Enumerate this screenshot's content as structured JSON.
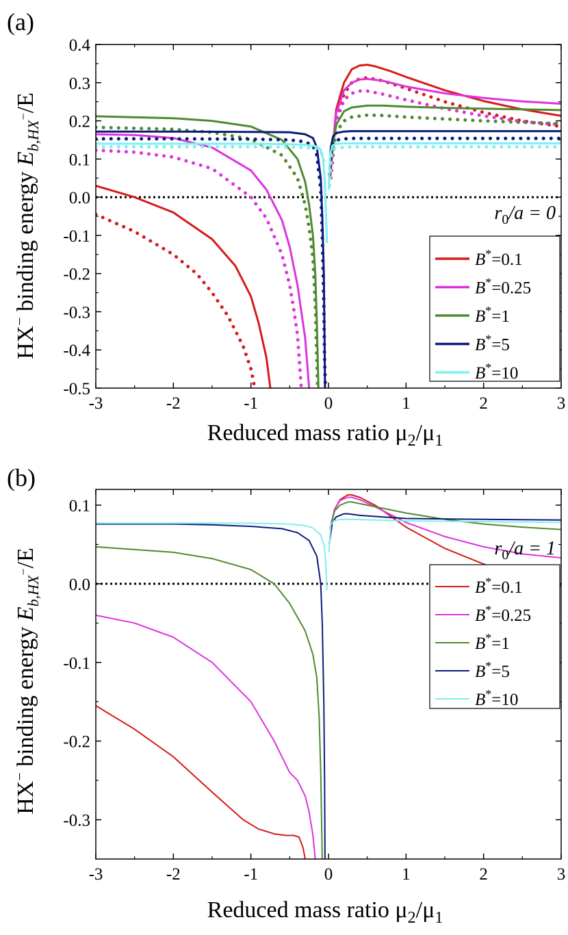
{
  "figure": {
    "panel_a_label": "(a)",
    "panel_b_label": "(b)",
    "ylabel_prefix": "HX",
    "ylabel_sup": "−",
    "ylabel_mid": " binding energy ",
    "ylabel_E": "E",
    "ylabel_sub": "b,HX",
    "ylabel_sub_sup": "−",
    "ylabel_suffix": "/E",
    "xlabel_main": "Reduced mass ratio μ",
    "xlabel_sub1": "2",
    "xlabel_slash": "/μ",
    "xlabel_sub2": "1"
  },
  "colors": {
    "B01": "#d71a1a",
    "B025": "#dd33dd",
    "B1": "#4f8a2f",
    "B5": "#0d1a7c",
    "B10": "#7fefef"
  },
  "chart_data": [
    {
      "type": "line",
      "panel": "a",
      "annotation": "r0/a = 0",
      "annotation_r": "r",
      "annotation_sub": "0",
      "annotation_rest": "/a = 0",
      "xlim": [
        -3,
        3
      ],
      "ylim": [
        -0.5,
        0.4
      ],
      "xticks": [
        "-3",
        "-2",
        "-1",
        "0",
        "1",
        "2",
        "3"
      ],
      "yticks": [
        "-0.5",
        "-0.4",
        "-0.3",
        "-0.2",
        "-0.1",
        "0.0",
        "0.1",
        "0.2",
        "0.3",
        "0.4"
      ],
      "reference_line": {
        "y": 0,
        "style": "dotted",
        "color": "#000000"
      },
      "legend": [
        "B*=0.1",
        "B*=0.25",
        "B*=1",
        "B*=5",
        "B*=10"
      ],
      "series": [
        {
          "name": "B*=0.1",
          "style": "solid",
          "color_key": "B01",
          "x": [
            -3,
            -2.5,
            -2,
            -1.5,
            -1.2,
            -1,
            -0.9,
            -0.8,
            -0.75
          ],
          "y": [
            0.03,
            0.0,
            -0.04,
            -0.11,
            -0.18,
            -0.26,
            -0.33,
            -0.42,
            -0.5
          ]
        },
        {
          "name": "B*=0.1",
          "style": "solid",
          "color_key": "B01",
          "x": [
            0.02,
            0.1,
            0.2,
            0.3,
            0.4,
            0.5,
            0.6,
            0.8,
            1.0,
            1.5,
            2,
            2.5,
            3
          ],
          "y": [
            0.05,
            0.23,
            0.3,
            0.335,
            0.345,
            0.347,
            0.343,
            0.33,
            0.315,
            0.28,
            0.252,
            0.23,
            0.213
          ]
        },
        {
          "name": "B*=0.1 (dotted)",
          "style": "dotted",
          "color_key": "B01",
          "x": [
            -3,
            -2.5,
            -2,
            -1.7,
            -1.5,
            -1.3,
            -1.1,
            -1.0,
            -0.95
          ],
          "y": [
            -0.045,
            -0.09,
            -0.15,
            -0.2,
            -0.25,
            -0.31,
            -0.39,
            -0.45,
            -0.5
          ]
        },
        {
          "name": "B*=0.1 (dotted)",
          "style": "dotted",
          "color_key": "B01",
          "x": [
            0.03,
            0.1,
            0.2,
            0.3,
            0.4,
            0.5,
            0.7,
            1.0,
            1.5,
            2,
            2.5,
            3
          ],
          "y": [
            0.05,
            0.2,
            0.27,
            0.3,
            0.31,
            0.313,
            0.305,
            0.285,
            0.25,
            0.222,
            0.2,
            0.185
          ]
        },
        {
          "name": "B*=0.25",
          "style": "solid",
          "color_key": "B025",
          "x": [
            -3,
            -2.5,
            -2,
            -1.5,
            -1,
            -0.8,
            -0.6,
            -0.5,
            -0.4,
            -0.3,
            -0.25
          ],
          "y": [
            0.165,
            0.163,
            0.155,
            0.13,
            0.07,
            0.02,
            -0.06,
            -0.13,
            -0.23,
            -0.37,
            -0.5
          ]
        },
        {
          "name": "B*=0.25",
          "style": "solid",
          "color_key": "B025",
          "x": [
            0.02,
            0.1,
            0.2,
            0.3,
            0.4,
            0.5,
            0.7,
            1.0,
            1.5,
            2,
            2.5,
            3
          ],
          "y": [
            0.06,
            0.22,
            0.28,
            0.3,
            0.308,
            0.31,
            0.305,
            0.29,
            0.272,
            0.26,
            0.251,
            0.245
          ]
        },
        {
          "name": "B*=0.25 (dotted)",
          "style": "dotted",
          "color_key": "B025",
          "x": [
            -3,
            -2.5,
            -2,
            -1.5,
            -1,
            -0.8,
            -0.6,
            -0.5,
            -0.45,
            -0.4,
            -0.35
          ],
          "y": [
            0.123,
            0.118,
            0.105,
            0.075,
            0.0,
            -0.055,
            -0.15,
            -0.23,
            -0.29,
            -0.36,
            -0.5
          ]
        },
        {
          "name": "B*=0.25 (dotted)",
          "style": "dotted",
          "color_key": "B025",
          "x": [
            0.03,
            0.1,
            0.2,
            0.3,
            0.4,
            0.5,
            0.7,
            1.0,
            1.5,
            2,
            2.5,
            3
          ],
          "y": [
            0.07,
            0.2,
            0.255,
            0.272,
            0.278,
            0.278,
            0.27,
            0.255,
            0.232,
            0.213,
            0.198,
            0.19
          ]
        },
        {
          "name": "B*=1",
          "style": "solid",
          "color_key": "B1",
          "x": [
            -3,
            -2,
            -1.5,
            -1,
            -0.6,
            -0.4,
            -0.3,
            -0.25,
            -0.2,
            -0.17,
            -0.15,
            -0.13
          ],
          "y": [
            0.212,
            0.207,
            0.2,
            0.185,
            0.15,
            0.1,
            0.04,
            -0.02,
            -0.1,
            -0.2,
            -0.33,
            -0.5
          ]
        },
        {
          "name": "B*=1",
          "style": "solid",
          "color_key": "B1",
          "x": [
            0.03,
            0.1,
            0.2,
            0.3,
            0.5,
            0.7,
            1.0,
            1.5,
            2,
            2.5,
            3
          ],
          "y": [
            0.1,
            0.19,
            0.225,
            0.235,
            0.24,
            0.24,
            0.237,
            0.234,
            0.232,
            0.23,
            0.228
          ]
        },
        {
          "name": "B*=1 (dotted)",
          "style": "dotted",
          "color_key": "B1",
          "x": [
            -3,
            -2,
            -1.5,
            -1,
            -0.6,
            -0.4,
            -0.3,
            -0.25,
            -0.2,
            -0.17,
            -0.14
          ],
          "y": [
            0.183,
            0.178,
            0.17,
            0.152,
            0.11,
            0.05,
            -0.02,
            -0.08,
            -0.16,
            -0.28,
            -0.5
          ]
        },
        {
          "name": "B*=1 (dotted)",
          "style": "dotted",
          "color_key": "B1",
          "x": [
            0.03,
            0.1,
            0.2,
            0.3,
            0.5,
            0.7,
            1.0,
            1.5,
            2,
            2.5,
            3
          ],
          "y": [
            0.09,
            0.17,
            0.2,
            0.21,
            0.215,
            0.214,
            0.21,
            0.205,
            0.2,
            0.196,
            0.193
          ]
        },
        {
          "name": "B*=5",
          "style": "solid",
          "color_key": "B5",
          "x": [
            -3,
            -2,
            -1,
            -0.5,
            -0.3,
            -0.2,
            -0.15,
            -0.1,
            -0.08,
            -0.06,
            -0.05,
            -0.045
          ],
          "y": [
            0.172,
            0.172,
            0.171,
            0.17,
            0.165,
            0.155,
            0.13,
            0.05,
            -0.05,
            -0.2,
            -0.38,
            -0.5
          ]
        },
        {
          "name": "B*=5",
          "style": "solid",
          "color_key": "B5",
          "x": [
            0.01,
            0.03,
            0.06,
            0.1,
            0.2,
            0.3,
            0.5,
            1,
            2,
            3
          ],
          "y": [
            0.05,
            0.13,
            0.16,
            0.168,
            0.172,
            0.173,
            0.173,
            0.173,
            0.173,
            0.173
          ]
        },
        {
          "name": "B*=5 (dotted)",
          "style": "dotted",
          "color_key": "B5",
          "x": [
            -3,
            -2,
            -1,
            -0.5,
            -0.3,
            -0.2,
            -0.15,
            -0.1,
            -0.08,
            -0.06,
            -0.05,
            -0.04
          ],
          "y": [
            0.153,
            0.153,
            0.152,
            0.15,
            0.145,
            0.135,
            0.11,
            0.02,
            -0.1,
            -0.28,
            -0.42,
            -0.5
          ]
        },
        {
          "name": "B*=5 (dotted)",
          "style": "dotted",
          "color_key": "B5",
          "x": [
            0.015,
            0.04,
            0.08,
            0.15,
            0.3,
            0.5,
            1,
            2,
            3
          ],
          "y": [
            0.06,
            0.13,
            0.147,
            0.152,
            0.154,
            0.154,
            0.154,
            0.154,
            0.154
          ]
        },
        {
          "name": "B*=10",
          "style": "solid",
          "color_key": "B10",
          "x": [
            -3,
            -2,
            -1,
            -0.5,
            -0.3,
            -0.15,
            -0.1,
            -0.07,
            -0.05,
            -0.03,
            -0.02
          ],
          "y": [
            0.14,
            0.14,
            0.14,
            0.139,
            0.137,
            0.133,
            0.125,
            0.1,
            0.05,
            -0.05,
            -0.12
          ]
        },
        {
          "name": "B*=10",
          "style": "solid",
          "color_key": "B10",
          "x": [
            0.005,
            0.02,
            0.05,
            0.1,
            0.2,
            0.5,
            1,
            2,
            3
          ],
          "y": [
            0.02,
            0.11,
            0.135,
            0.14,
            0.141,
            0.141,
            0.141,
            0.141,
            0.141
          ]
        },
        {
          "name": "B*=10 (dotted)",
          "style": "dotted",
          "color_key": "B10",
          "x": [
            -3,
            -2,
            -1,
            -0.5,
            -0.3,
            -0.15,
            -0.1,
            -0.07,
            -0.05
          ],
          "y": [
            0.132,
            0.132,
            0.132,
            0.131,
            0.13,
            0.127,
            0.12,
            0.105,
            0.08
          ]
        },
        {
          "name": "B*=10 (dotted)",
          "style": "dotted",
          "color_key": "B10",
          "x": [
            0.015,
            0.04,
            0.08,
            0.15,
            0.3,
            0.5,
            1,
            2,
            3
          ],
          "y": [
            0.03,
            0.115,
            0.127,
            0.13,
            0.132,
            0.132,
            0.132,
            0.132,
            0.132
          ]
        }
      ]
    },
    {
      "type": "line",
      "panel": "b",
      "annotation": "r0/a = 1",
      "annotation_r": "r",
      "annotation_sub": "0",
      "annotation_rest": "/a = 1",
      "xlim": [
        -3,
        3
      ],
      "ylim": [
        -0.35,
        0.12
      ],
      "xticks": [
        "-3",
        "-2",
        "-1",
        "0",
        "1",
        "2",
        "3"
      ],
      "yticks": [
        "-0.3",
        "-0.2",
        "-0.1",
        "0.0",
        "0.1"
      ],
      "ytick_values": [
        -0.3,
        -0.2,
        -0.1,
        0.0,
        0.1
      ],
      "reference_line": {
        "y": 0,
        "style": "dotted",
        "color": "#000000"
      },
      "legend": [
        "B*=0.1",
        "B*=0.25",
        "B*=1",
        "B*=5",
        "B*=10"
      ],
      "series": [
        {
          "name": "B*=0.1",
          "style": "solid",
          "color_key": "B01",
          "x": [
            -3,
            -2.5,
            -2,
            -1.5,
            -1.1,
            -0.9,
            -0.7,
            -0.55,
            -0.45,
            -0.38,
            -0.33,
            -0.3
          ],
          "y": [
            -0.155,
            -0.185,
            -0.22,
            -0.265,
            -0.3,
            -0.312,
            -0.318,
            -0.32,
            -0.32,
            -0.322,
            -0.335,
            -0.35
          ]
        },
        {
          "name": "B*=0.1",
          "style": "solid",
          "color_key": "B01",
          "x": [
            0.02,
            0.08,
            0.15,
            0.25,
            0.3,
            0.4,
            0.6,
            0.8,
            1.0,
            1.5,
            2,
            2.5,
            3
          ],
          "y": [
            0.07,
            0.095,
            0.107,
            0.113,
            0.113,
            0.11,
            0.1,
            0.086,
            0.072,
            0.045,
            0.025,
            0.01,
            -0.003
          ]
        },
        {
          "name": "B*=0.25",
          "style": "solid",
          "color_key": "B025",
          "x": [
            -3,
            -2.5,
            -2,
            -1.5,
            -1.0,
            -0.7,
            -0.5,
            -0.4,
            -0.3,
            -0.25,
            -0.2,
            -0.17
          ],
          "y": [
            -0.04,
            -0.05,
            -0.068,
            -0.1,
            -0.15,
            -0.2,
            -0.24,
            -0.25,
            -0.27,
            -0.29,
            -0.32,
            -0.35
          ]
        },
        {
          "name": "B*=0.25",
          "style": "solid",
          "color_key": "B025",
          "x": [
            0.02,
            0.08,
            0.15,
            0.25,
            0.3,
            0.4,
            0.6,
            1.0,
            1.5,
            2,
            2.5,
            3
          ],
          "y": [
            0.07,
            0.095,
            0.106,
            0.11,
            0.11,
            0.107,
            0.098,
            0.078,
            0.06,
            0.047,
            0.038,
            0.033
          ]
        },
        {
          "name": "B*=1",
          "style": "solid",
          "color_key": "B1",
          "x": [
            -3,
            -2,
            -1.5,
            -1,
            -0.7,
            -0.5,
            -0.3,
            -0.2,
            -0.15,
            -0.12,
            -0.1,
            -0.08
          ],
          "y": [
            0.047,
            0.04,
            0.032,
            0.018,
            0.0,
            -0.025,
            -0.06,
            -0.09,
            -0.12,
            -0.17,
            -0.24,
            -0.35
          ]
        },
        {
          "name": "B*=1",
          "style": "solid",
          "color_key": "B1",
          "x": [
            0.02,
            0.08,
            0.15,
            0.25,
            0.3,
            0.5,
            1.0,
            1.5,
            2,
            2.5,
            3
          ],
          "y": [
            0.07,
            0.093,
            0.1,
            0.104,
            0.104,
            0.1,
            0.09,
            0.082,
            0.076,
            0.072,
            0.069
          ]
        },
        {
          "name": "B*=5",
          "style": "solid",
          "color_key": "B5",
          "x": [
            -3,
            -2,
            -1.5,
            -1,
            -0.6,
            -0.4,
            -0.25,
            -0.15,
            -0.1,
            -0.08,
            -0.06,
            -0.05,
            -0.045
          ],
          "y": [
            0.076,
            0.076,
            0.075,
            0.073,
            0.07,
            0.065,
            0.055,
            0.035,
            0.0,
            -0.05,
            -0.15,
            -0.25,
            -0.35
          ]
        },
        {
          "name": "B*=5",
          "style": "solid",
          "color_key": "B5",
          "x": [
            0.01,
            0.05,
            0.1,
            0.2,
            0.25,
            0.4,
            0.7,
            1,
            2,
            3
          ],
          "y": [
            0.05,
            0.078,
            0.085,
            0.089,
            0.089,
            0.087,
            0.085,
            0.083,
            0.082,
            0.081
          ]
        },
        {
          "name": "B*=10",
          "style": "solid",
          "color_key": "B10",
          "x": [
            -3,
            -2,
            -1,
            -0.5,
            -0.3,
            -0.2,
            -0.1,
            -0.06,
            -0.04,
            -0.03,
            -0.02
          ],
          "y": [
            0.077,
            0.077,
            0.077,
            0.076,
            0.074,
            0.071,
            0.062,
            0.05,
            0.035,
            0.015,
            -0.008
          ]
        },
        {
          "name": "B*=10",
          "style": "solid",
          "color_key": "B10",
          "x": [
            0.005,
            0.03,
            0.07,
            0.15,
            0.3,
            0.6,
            1,
            2,
            3
          ],
          "y": [
            0.04,
            0.075,
            0.08,
            0.082,
            0.082,
            0.081,
            0.08,
            0.079,
            0.078
          ]
        }
      ]
    }
  ]
}
